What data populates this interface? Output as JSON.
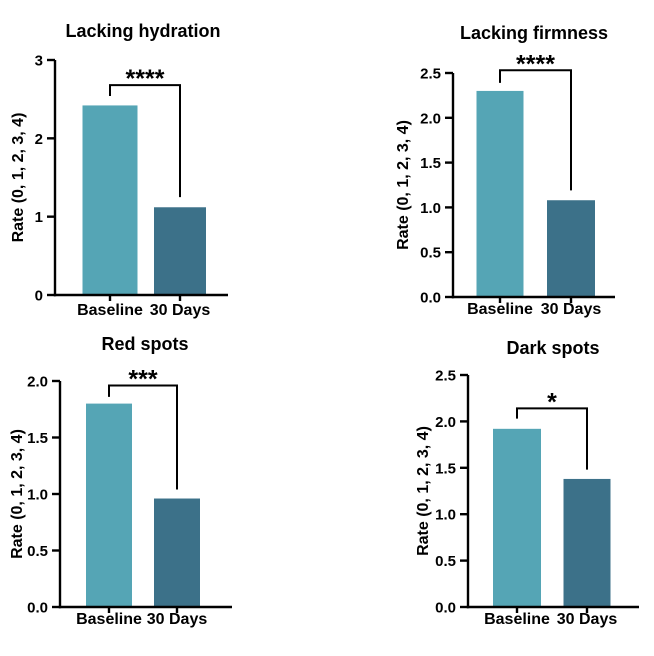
{
  "page": {
    "background": "#FFFFFF"
  },
  "colors": {
    "baseline_bar": "#55A5B5",
    "days30_bar": "#3C7189",
    "axis": "#000000",
    "text": "#000000"
  },
  "chart_data": [
    {
      "type": "bar",
      "title": "Lacking hydration",
      "ylabel": "Rate (0, 1, 2, 3, 4)",
      "categories": [
        "Baseline",
        "30 Days"
      ],
      "values": [
        2.42,
        1.12
      ],
      "ylim": [
        0,
        3
      ],
      "yticks": [
        "0",
        "1",
        "2",
        "3"
      ],
      "grid": false,
      "legend": false,
      "significance": {
        "label": "****",
        "line_at": 2.68,
        "left_tick_to": 2.54,
        "right_drop_to": 1.25
      }
    },
    {
      "type": "bar",
      "title": "Lacking firmness",
      "ylabel": "Rate (0, 1, 2, 3, 4)",
      "categories": [
        "Baseline",
        "30 Days"
      ],
      "values": [
        2.3,
        1.08
      ],
      "ylim": [
        0,
        2.5
      ],
      "yticks": [
        "0.0",
        "0.5",
        "1.0",
        "1.5",
        "2.0",
        "2.5"
      ],
      "grid": false,
      "legend": false,
      "significance": {
        "label": "****",
        "line_at": 2.53,
        "left_tick_to": 2.39,
        "right_drop_to": 1.19
      }
    },
    {
      "type": "bar",
      "title": "Red spots",
      "ylabel": "Rate (0, 1, 2, 3, 4)",
      "categories": [
        "Baseline",
        "30 Days"
      ],
      "values": [
        1.8,
        0.96
      ],
      "ylim": [
        0,
        2
      ],
      "yticks": [
        "0.0",
        "0.5",
        "1.0",
        "1.5",
        "2.0"
      ],
      "grid": false,
      "legend": false,
      "significance": {
        "label": "***",
        "line_at": 1.96,
        "left_tick_to": 1.86,
        "right_drop_to": 1.04
      }
    },
    {
      "type": "bar",
      "title": "Dark spots",
      "ylabel": "Rate (0, 1, 2, 3, 4)",
      "categories": [
        "Baseline",
        "30 Days"
      ],
      "values": [
        1.92,
        1.38
      ],
      "ylim": [
        0,
        2.5
      ],
      "yticks": [
        "0.0",
        "0.5",
        "1.0",
        "1.5",
        "2.0",
        "2.5"
      ],
      "grid": false,
      "legend": false,
      "significance": {
        "label": "*",
        "line_at": 2.14,
        "left_tick_to": 2.03,
        "right_drop_to": 1.48
      }
    }
  ]
}
